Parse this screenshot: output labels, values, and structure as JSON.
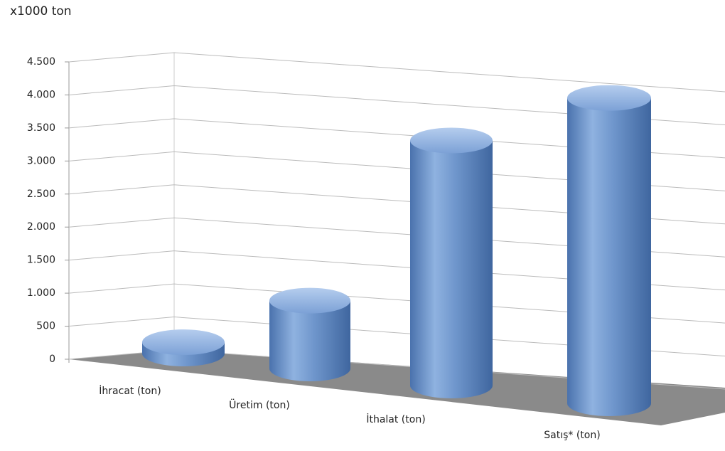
{
  "chart_data": {
    "type": "bar",
    "title": "x1000 ton",
    "categories": [
      "İhracat (ton)",
      "Üretim (ton)",
      "İthalat (ton)",
      "Satış* (ton)"
    ],
    "values": [
      150,
      900,
      3250,
      4050
    ],
    "color": "#6f96cc",
    "ylim": [
      0,
      4500
    ],
    "yticks": [
      0,
      500,
      {
        "value": 1000,
        "label": "1.000"
      },
      {
        "value": 1500,
        "label": "1.500"
      },
      {
        "value": 2000,
        "label": "2.000"
      },
      {
        "value": 2500,
        "label": "2.500"
      },
      {
        "value": 3000,
        "label": "3.000"
      },
      {
        "value": 3500,
        "label": "3.500"
      },
      {
        "value": 4000,
        "label": "4.000"
      },
      {
        "value": 4500,
        "label": "4.500"
      }
    ],
    "grid": true
  }
}
